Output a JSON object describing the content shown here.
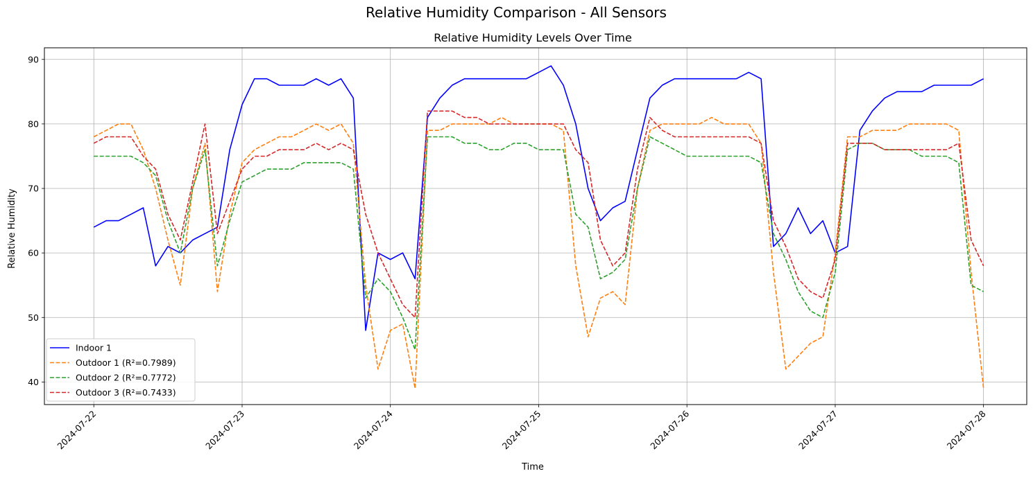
{
  "chart_data": {
    "type": "line",
    "suptitle": "Relative Humidity Comparison - All Sensors",
    "title": "Relative Humidity Levels Over Time",
    "xlabel": "Time",
    "ylabel": "Relative Humidity",
    "grid": true,
    "legend_position": "lower-left",
    "xlim": [
      "2024-07-21T16:00",
      "2024-07-28T07:00"
    ],
    "ylim": [
      36.5,
      91.8
    ],
    "x_ticks": [
      "2024-07-22",
      "2024-07-23",
      "2024-07-24",
      "2024-07-25",
      "2024-07-26",
      "2024-07-27",
      "2024-07-28"
    ],
    "y_ticks": [
      40,
      50,
      60,
      70,
      80,
      90
    ],
    "x": [
      "2024-07-22T00:00",
      "2024-07-22T02:00",
      "2024-07-22T04:00",
      "2024-07-22T06:00",
      "2024-07-22T08:00",
      "2024-07-22T10:00",
      "2024-07-22T12:00",
      "2024-07-22T14:00",
      "2024-07-22T16:00",
      "2024-07-22T18:00",
      "2024-07-22T20:00",
      "2024-07-22T22:00",
      "2024-07-23T00:00",
      "2024-07-23T02:00",
      "2024-07-23T04:00",
      "2024-07-23T06:00",
      "2024-07-23T08:00",
      "2024-07-23T10:00",
      "2024-07-23T12:00",
      "2024-07-23T14:00",
      "2024-07-23T16:00",
      "2024-07-23T18:00",
      "2024-07-23T20:00",
      "2024-07-23T22:00",
      "2024-07-24T00:00",
      "2024-07-24T02:00",
      "2024-07-24T04:00",
      "2024-07-24T06:00",
      "2024-07-24T08:00",
      "2024-07-24T10:00",
      "2024-07-24T12:00",
      "2024-07-24T14:00",
      "2024-07-24T16:00",
      "2024-07-24T18:00",
      "2024-07-24T20:00",
      "2024-07-24T22:00",
      "2024-07-25T00:00",
      "2024-07-25T02:00",
      "2024-07-25T04:00",
      "2024-07-25T06:00",
      "2024-07-25T08:00",
      "2024-07-25T10:00",
      "2024-07-25T12:00",
      "2024-07-25T14:00",
      "2024-07-25T16:00",
      "2024-07-25T18:00",
      "2024-07-25T20:00",
      "2024-07-25T22:00",
      "2024-07-26T00:00",
      "2024-07-26T02:00",
      "2024-07-26T04:00",
      "2024-07-26T06:00",
      "2024-07-26T08:00",
      "2024-07-26T10:00",
      "2024-07-26T12:00",
      "2024-07-26T14:00",
      "2024-07-26T16:00",
      "2024-07-26T18:00",
      "2024-07-26T20:00",
      "2024-07-26T22:00",
      "2024-07-27T00:00",
      "2024-07-27T02:00",
      "2024-07-27T04:00",
      "2024-07-27T06:00",
      "2024-07-27T08:00",
      "2024-07-27T10:00",
      "2024-07-27T12:00",
      "2024-07-27T14:00",
      "2024-07-27T16:00",
      "2024-07-27T18:00",
      "2024-07-27T20:00",
      "2024-07-27T22:00",
      "2024-07-28T00:00"
    ],
    "series": [
      {
        "name": "Indoor 1",
        "color": "#0000ff",
        "dashed": false,
        "values": [
          64,
          65,
          65,
          66,
          67,
          58,
          61,
          60,
          62,
          63,
          64,
          76,
          83,
          87,
          87,
          86,
          86,
          86,
          87,
          86,
          87,
          84,
          48,
          60,
          59,
          60,
          56,
          81,
          84,
          86,
          87,
          87,
          87,
          87,
          87,
          87,
          88,
          89,
          86,
          80,
          70,
          65,
          67,
          68,
          76,
          84,
          86,
          87,
          87,
          87,
          87,
          87,
          87,
          88,
          87,
          61,
          63,
          67,
          63,
          65,
          60,
          61,
          79,
          82,
          84,
          85,
          85,
          85,
          86,
          86,
          86,
          86,
          87
        ]
      },
      {
        "name": "Outdoor 1 (R²=0.7989)",
        "color": "#ff7f0e",
        "dashed": true,
        "values": [
          78,
          79,
          80,
          80,
          76,
          70,
          62,
          55,
          70,
          77,
          54,
          66,
          74,
          76,
          77,
          78,
          78,
          79,
          80,
          79,
          80,
          77,
          55,
          42,
          48,
          49,
          39,
          79,
          79,
          80,
          80,
          80,
          80,
          81,
          80,
          80,
          80,
          80,
          79,
          58,
          47,
          53,
          54,
          52,
          70,
          79,
          80,
          80,
          80,
          80,
          81,
          80,
          80,
          80,
          77,
          57,
          42,
          44,
          46,
          47,
          60,
          78,
          78,
          79,
          79,
          79,
          80,
          80,
          80,
          80,
          79,
          57,
          39
        ]
      },
      {
        "name": "Outdoor 2 (R²=0.7772)",
        "color": "#2ca02c",
        "dashed": true,
        "values": [
          75,
          75,
          75,
          75,
          74,
          72,
          65,
          60,
          70,
          76,
          58,
          65,
          71,
          72,
          73,
          73,
          73,
          74,
          74,
          74,
          74,
          73,
          53,
          56,
          54,
          50,
          45,
          78,
          78,
          78,
          77,
          77,
          76,
          76,
          77,
          77,
          76,
          76,
          76,
          66,
          64,
          56,
          57,
          59,
          70,
          78,
          77,
          76,
          75,
          75,
          75,
          75,
          75,
          75,
          74,
          63,
          59,
          54,
          51,
          50,
          57,
          76,
          77,
          77,
          76,
          76,
          76,
          75,
          75,
          75,
          74,
          55,
          54
        ]
      },
      {
        "name": "Outdoor 3 (R²=0.7433)",
        "color": "#d62728",
        "dashed": true,
        "values": [
          77,
          78,
          78,
          78,
          75,
          73,
          66,
          62,
          71,
          80,
          63,
          68,
          73,
          75,
          75,
          76,
          76,
          76,
          77,
          76,
          77,
          76,
          66,
          60,
          56,
          52,
          50,
          82,
          82,
          82,
          81,
          81,
          80,
          80,
          80,
          80,
          80,
          80,
          80,
          76,
          74,
          62,
          58,
          60,
          73,
          81,
          79,
          78,
          78,
          78,
          78,
          78,
          78,
          78,
          77,
          65,
          61,
          56,
          54,
          53,
          59,
          77,
          77,
          77,
          76,
          76,
          76,
          76,
          76,
          76,
          77,
          62,
          58
        ]
      }
    ]
  }
}
